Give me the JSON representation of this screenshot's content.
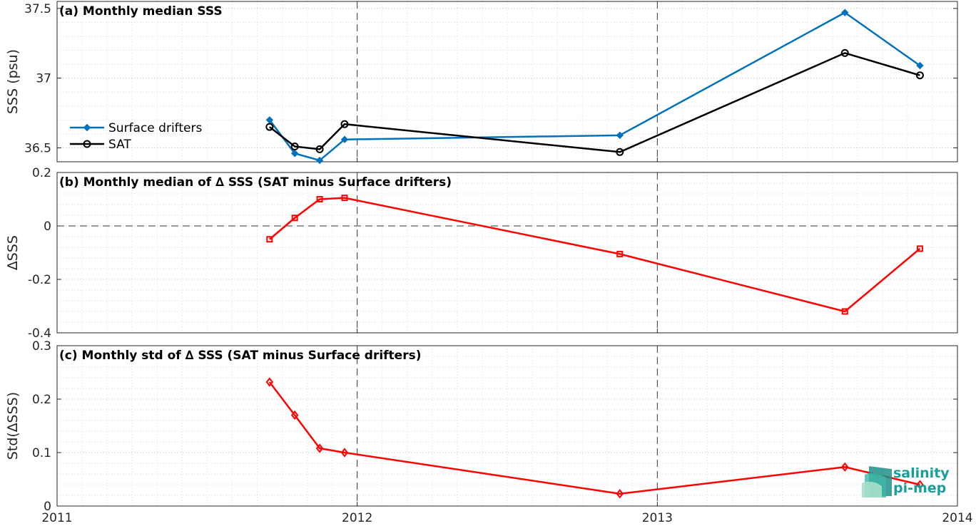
{
  "chart_data": [
    {
      "panel": "a",
      "type": "line",
      "title": "(a) Monthly median SSS",
      "ylabel": "SSS (psu)",
      "xlabel": "",
      "xlim": [
        2011,
        2014
      ],
      "ylim": [
        36.4,
        37.55
      ],
      "xticks": [
        2011,
        2012,
        2013,
        2014
      ],
      "xticklabels": [
        "2011",
        "2012",
        "2013",
        "2014"
      ],
      "yticks": [
        36.5,
        37,
        37.5
      ],
      "yticklabels": [
        "36.5",
        "37",
        "37.5"
      ],
      "grid": true,
      "legend": "left",
      "series": [
        {
          "name": "Surface drifters",
          "color": "#0072bd",
          "marker": "diamond-filled",
          "x": [
            2011.708,
            2011.792,
            2011.875,
            2011.958,
            2012.875,
            2013.625,
            2013.875
          ],
          "values": [
            36.7,
            36.46,
            36.41,
            36.56,
            36.59,
            37.47,
            37.09
          ]
        },
        {
          "name": "SAT",
          "color": "#000000",
          "marker": "circle",
          "x": [
            2011.708,
            2011.792,
            2011.875,
            2011.958,
            2012.875,
            2013.625,
            2013.875
          ],
          "values": [
            36.65,
            36.51,
            36.49,
            36.67,
            36.47,
            37.18,
            37.02
          ]
        }
      ]
    },
    {
      "panel": "b",
      "type": "line",
      "title": "(b) Monthly median of ∆ SSS (SAT minus Surface drifters)",
      "ylabel": "∆SSS",
      "xlabel": "",
      "xlim": [
        2011,
        2014
      ],
      "ylim": [
        -0.4,
        0.2
      ],
      "xticks": [
        2011,
        2012,
        2013,
        2014
      ],
      "xticklabels": [
        "2011",
        "2012",
        "2013",
        "2014"
      ],
      "yticks": [
        -0.4,
        -0.2,
        0,
        0.2
      ],
      "yticklabels": [
        "-0.4",
        "-0.2",
        "0",
        "0.2"
      ],
      "zero_line": true,
      "grid": true,
      "series": [
        {
          "name": "",
          "color": "#ff0000",
          "marker": "square",
          "x": [
            2011.708,
            2011.792,
            2011.875,
            2011.958,
            2012.875,
            2013.625,
            2013.875
          ],
          "values": [
            -0.05,
            0.03,
            0.1,
            0.105,
            -0.105,
            -0.32,
            -0.085
          ]
        }
      ]
    },
    {
      "panel": "c",
      "type": "line",
      "title": "(c) Monthly std of ∆ SSS (SAT minus Surface drifters)",
      "ylabel": "Std(∆SSS)",
      "xlabel": "",
      "xlim": [
        2011,
        2014
      ],
      "ylim": [
        0,
        0.3
      ],
      "xticks": [
        2011,
        2012,
        2013,
        2014
      ],
      "xticklabels": [
        "2011",
        "2012",
        "2013",
        "2014"
      ],
      "yticks": [
        0,
        0.1,
        0.2,
        0.3
      ],
      "yticklabels": [
        "0",
        "0.1",
        "0.2",
        "0.3"
      ],
      "grid": true,
      "series": [
        {
          "name": "",
          "color": "#ff0000",
          "marker": "diamond",
          "x": [
            2011.708,
            2011.792,
            2011.875,
            2011.958,
            2012.875,
            2013.625,
            2013.875
          ],
          "values": [
            0.232,
            0.17,
            0.108,
            0.1,
            0.023,
            0.073,
            0.04
          ]
        }
      ]
    }
  ],
  "logo": {
    "line1": "salinity",
    "line2": "pi-mep",
    "color": "#1a9e9a"
  }
}
